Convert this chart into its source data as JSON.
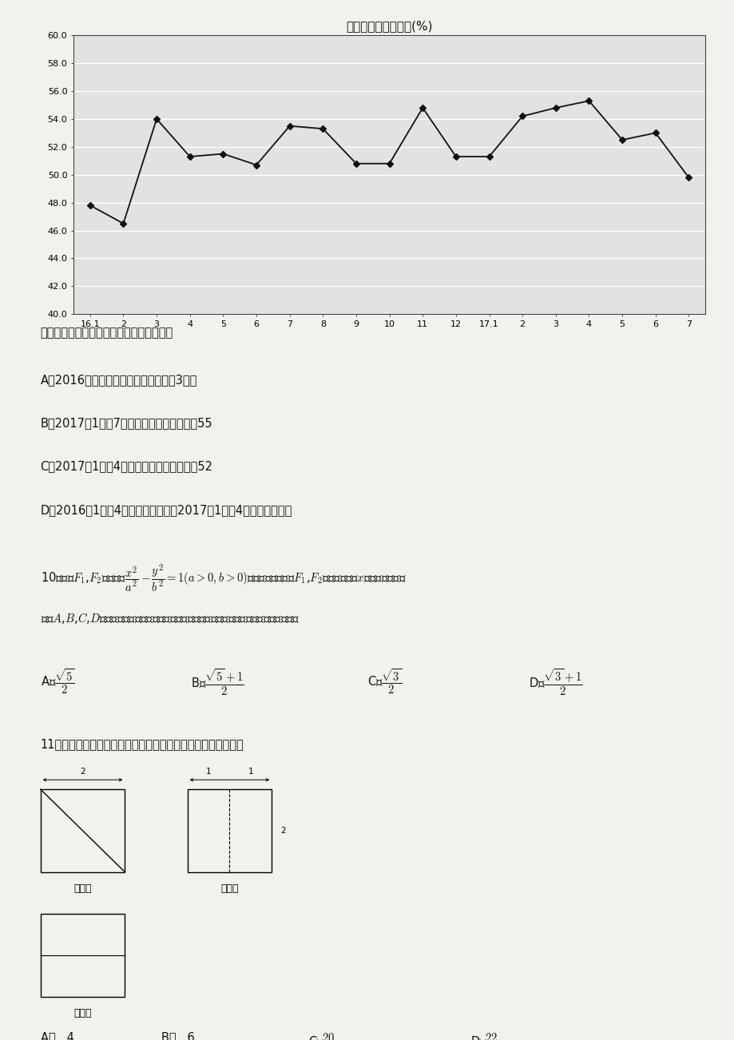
{
  "title": "中国仓储指数走势图(%)",
  "x_labels": [
    "16.1",
    "2",
    "3",
    "4",
    "5",
    "6",
    "7",
    "8",
    "9",
    "10",
    "11",
    "12",
    "17.1",
    "2",
    "3",
    "4",
    "5",
    "6",
    "7"
  ],
  "y_values": [
    47.8,
    46.5,
    54.0,
    51.3,
    51.5,
    50.7,
    53.5,
    53.3,
    50.8,
    50.8,
    54.8,
    51.3,
    51.3,
    54.2,
    54.8,
    55.3,
    52.5,
    53.0,
    49.8
  ],
  "y_min": 40.0,
  "y_max": 60.0,
  "y_step": 2.0,
  "bg_color": "#f2f1ec",
  "chart_bg": "#e2e2e2",
  "line_color": "#111111",
  "grid_color": "#ffffff",
  "title_fontsize": 11,
  "tick_fontsize": 8,
  "fs_main": 10.5,
  "fs_label": 9,
  "question_9": "根据该折线图，下列结论正确的是（　　）",
  "q9_A": "A．2016年各月的仓储指数最大值是在3月份",
  "q9_B": "B．2017年1月至7月的仓储指数的中位数为55",
  "q9_C": "C．2017年1月与4月的仓储指数的平均数为52",
  "q9_D": "D．2016年1月至4月仓储指数相对于2017年1月至4月，波动性更大",
  "question_11": "11．某几何体的三视图如图所示，则该几何体的体积为（　　）"
}
